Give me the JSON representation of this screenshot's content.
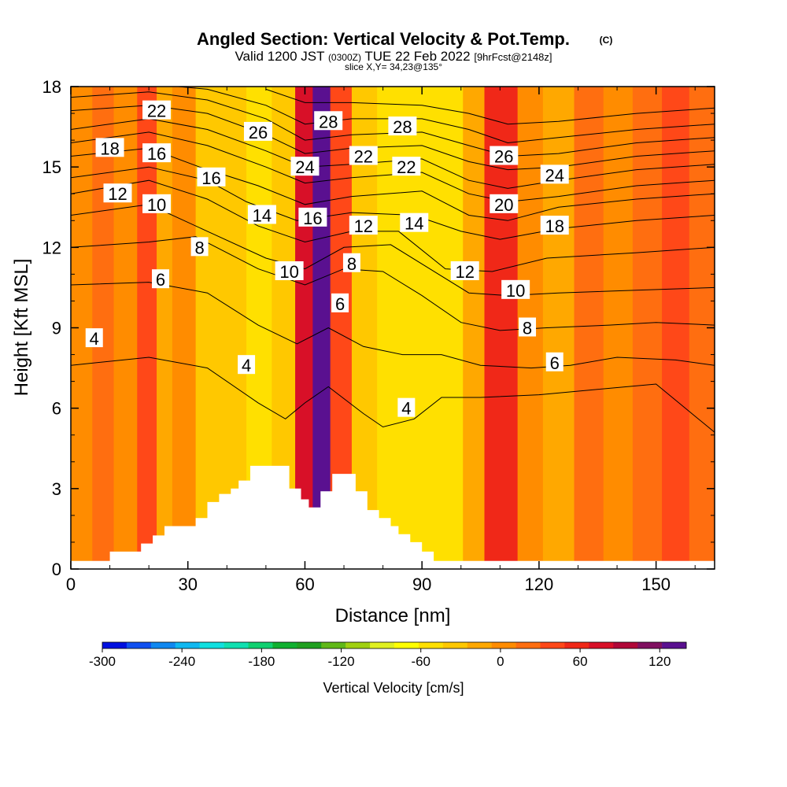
{
  "chart_data": {
    "type": "heatmap",
    "title": "Angled Section: Vertical Velocity & Pot.Temp.",
    "title_suffix": "(C)",
    "subtitle_main": "Valid 1200 JST",
    "subtitle_utc": "(0300Z)",
    "subtitle_date": "TUE 22 Feb 2022",
    "subtitle_fcst": "[9hrFcst@2148z]",
    "slice_label": "slice X,Y= 34,23@135°",
    "xlabel": "Distance [nm]",
    "ylabel": "Height [Kft MSL]",
    "xlim": [
      0,
      165
    ],
    "ylim": [
      0,
      18
    ],
    "x_ticks": [
      "0",
      "30",
      "60",
      "90",
      "120",
      "150"
    ],
    "y_ticks": [
      "0",
      "3",
      "6",
      "9",
      "12",
      "15",
      "18"
    ],
    "colorbar_label": "Vertical Velocity [cm/s]",
    "colorbar_ticks": [
      "-300",
      "-240",
      "-180",
      "-120",
      "-60",
      "0",
      "60",
      "120"
    ],
    "colorbar_range": [
      -300,
      140
    ],
    "colorbar_colors": [
      "#0010e0",
      "#1050f0",
      "#1088f0",
      "#10b8f0",
      "#10e0e0",
      "#10e0b0",
      "#10d070",
      "#10b030",
      "#20a020",
      "#60b818",
      "#a0d010",
      "#e0f020",
      "#ffff00",
      "#ffe000",
      "#ffc800",
      "#ffa800",
      "#ff8c00",
      "#ff6e10",
      "#ff4818",
      "#f02818",
      "#d81028",
      "#b00838",
      "#801060",
      "#5a1090"
    ],
    "velocity_bands": [
      {
        "x": 3,
        "value": -5
      },
      {
        "x": 8,
        "value": 20
      },
      {
        "x": 14,
        "value": 5
      },
      {
        "x": 20,
        "value": 45
      },
      {
        "x": 24,
        "value": -20
      },
      {
        "x": 28,
        "value": 5
      },
      {
        "x": 36,
        "value": -35
      },
      {
        "x": 42,
        "value": -30
      },
      {
        "x": 48,
        "value": -55
      },
      {
        "x": 55,
        "value": -40
      },
      {
        "x": 60,
        "value": 75
      },
      {
        "x": 64,
        "value": 125
      },
      {
        "x": 69,
        "value": 40
      },
      {
        "x": 75,
        "value": -35
      },
      {
        "x": 82,
        "value": -60
      },
      {
        "x": 90,
        "value": -50
      },
      {
        "x": 97,
        "value": -45
      },
      {
        "x": 104,
        "value": -10
      },
      {
        "x": 108,
        "value": 60
      },
      {
        "x": 112,
        "value": 50
      },
      {
        "x": 117,
        "value": 5
      },
      {
        "x": 125,
        "value": -10
      },
      {
        "x": 133,
        "value": 15
      },
      {
        "x": 140,
        "value": -5
      },
      {
        "x": 148,
        "value": 20
      },
      {
        "x": 155,
        "value": 35
      },
      {
        "x": 162,
        "value": 15
      }
    ],
    "theta_contours": [
      {
        "value": 4,
        "points": [
          [
            0,
            7.6
          ],
          [
            20,
            7.9
          ],
          [
            35,
            7.5
          ],
          [
            48,
            6.2
          ],
          [
            55,
            5.6
          ],
          [
            60,
            6.2
          ],
          [
            66,
            6.8
          ],
          [
            75,
            5.8
          ],
          [
            80,
            5.3
          ],
          [
            88,
            5.6
          ],
          [
            95,
            6.4
          ],
          [
            105,
            6.4
          ],
          [
            120,
            6.5
          ],
          [
            135,
            6.7
          ],
          [
            150,
            6.9
          ],
          [
            165,
            5.1
          ]
        ]
      },
      {
        "value": 6,
        "points": [
          [
            0,
            10.6
          ],
          [
            20,
            10.7
          ],
          [
            35,
            10.3
          ],
          [
            48,
            9.1
          ],
          [
            58,
            8.4
          ],
          [
            66,
            9.0
          ],
          [
            75,
            8.3
          ],
          [
            85,
            8.0
          ],
          [
            95,
            8.0
          ],
          [
            105,
            7.6
          ],
          [
            118,
            7.5
          ],
          [
            128,
            7.6
          ],
          [
            140,
            7.9
          ],
          [
            155,
            7.8
          ],
          [
            165,
            7.6
          ]
        ]
      },
      {
        "value": 8,
        "points": [
          [
            0,
            12.0
          ],
          [
            20,
            12.2
          ],
          [
            32,
            12.4
          ],
          [
            48,
            11.2
          ],
          [
            60,
            10.6
          ],
          [
            70,
            11.2
          ],
          [
            80,
            11.1
          ],
          [
            90,
            10.2
          ],
          [
            100,
            9.2
          ],
          [
            110,
            8.9
          ],
          [
            122,
            9.0
          ],
          [
            138,
            9.1
          ],
          [
            150,
            9.2
          ],
          [
            165,
            9.1
          ]
        ]
      },
      {
        "value": 10,
        "points": [
          [
            0,
            13.2
          ],
          [
            20,
            13.6
          ],
          [
            35,
            12.6
          ],
          [
            50,
            11.6
          ],
          [
            60,
            11.2
          ],
          [
            70,
            12.0
          ],
          [
            82,
            12.1
          ],
          [
            92,
            11.2
          ],
          [
            102,
            10.3
          ],
          [
            112,
            10.2
          ],
          [
            125,
            10.3
          ],
          [
            145,
            10.4
          ],
          [
            165,
            10.5
          ]
        ]
      },
      {
        "value": 12,
        "points": [
          [
            0,
            14.0
          ],
          [
            20,
            14.5
          ],
          [
            35,
            13.8
          ],
          [
            48,
            12.8
          ],
          [
            60,
            12.2
          ],
          [
            72,
            12.6
          ],
          [
            84,
            12.6
          ],
          [
            96,
            11.2
          ],
          [
            108,
            11.1
          ],
          [
            122,
            11.6
          ],
          [
            145,
            11.8
          ],
          [
            165,
            12.0
          ]
        ]
      },
      {
        "value": 14,
        "points": [
          [
            0,
            14.6
          ],
          [
            20,
            15.0
          ],
          [
            35,
            14.5
          ],
          [
            45,
            13.7
          ],
          [
            58,
            13.0
          ],
          [
            72,
            13.3
          ],
          [
            88,
            13.2
          ],
          [
            100,
            12.6
          ],
          [
            110,
            12.3
          ],
          [
            125,
            12.7
          ],
          [
            145,
            13.0
          ],
          [
            165,
            13.2
          ]
        ]
      },
      {
        "value": 16,
        "points": [
          [
            0,
            15.4
          ],
          [
            20,
            15.7
          ],
          [
            33,
            15.0
          ],
          [
            48,
            14.3
          ],
          [
            60,
            13.6
          ],
          [
            72,
            13.9
          ],
          [
            90,
            14.1
          ],
          [
            102,
            13.2
          ],
          [
            112,
            13.0
          ],
          [
            125,
            13.5
          ],
          [
            145,
            13.8
          ],
          [
            165,
            14.0
          ]
        ]
      },
      {
        "value": 18,
        "points": [
          [
            0,
            15.9
          ],
          [
            20,
            16.3
          ],
          [
            35,
            15.8
          ],
          [
            50,
            15.0
          ],
          [
            60,
            14.4
          ],
          [
            72,
            14.6
          ],
          [
            90,
            14.8
          ],
          [
            102,
            14.0
          ],
          [
            112,
            13.7
          ],
          [
            125,
            13.9
          ],
          [
            145,
            14.3
          ],
          [
            165,
            14.5
          ]
        ]
      },
      {
        "value": 20,
        "points": [
          [
            0,
            16.4
          ],
          [
            20,
            16.8
          ],
          [
            35,
            16.4
          ],
          [
            50,
            15.6
          ],
          [
            60,
            15.0
          ],
          [
            72,
            15.1
          ],
          [
            90,
            15.3
          ],
          [
            102,
            14.5
          ],
          [
            112,
            14.2
          ],
          [
            125,
            14.5
          ],
          [
            145,
            14.9
          ],
          [
            165,
            15.1
          ]
        ]
      },
      {
        "value": 22,
        "points": [
          [
            0,
            17.1
          ],
          [
            20,
            17.3
          ],
          [
            35,
            17.0
          ],
          [
            50,
            16.2
          ],
          [
            60,
            15.5
          ],
          [
            72,
            15.7
          ],
          [
            90,
            15.8
          ],
          [
            102,
            15.2
          ],
          [
            112,
            14.9
          ],
          [
            125,
            15.0
          ],
          [
            145,
            15.4
          ],
          [
            165,
            15.6
          ]
        ]
      },
      {
        "value": 24,
        "points": [
          [
            0,
            17.6
          ],
          [
            20,
            17.8
          ],
          [
            35,
            17.5
          ],
          [
            50,
            16.8
          ],
          [
            60,
            16.0
          ],
          [
            72,
            16.2
          ],
          [
            90,
            16.3
          ],
          [
            102,
            15.8
          ],
          [
            112,
            15.4
          ],
          [
            125,
            15.5
          ],
          [
            145,
            15.9
          ],
          [
            165,
            16.1
          ]
        ]
      },
      {
        "value": 26,
        "points": [
          [
            0,
            18.0
          ],
          [
            20,
            18.1
          ],
          [
            35,
            17.9
          ],
          [
            50,
            17.3
          ],
          [
            60,
            16.6
          ],
          [
            72,
            16.8
          ],
          [
            90,
            16.8
          ],
          [
            102,
            16.4
          ],
          [
            112,
            15.9
          ],
          [
            125,
            16.1
          ],
          [
            145,
            16.4
          ],
          [
            165,
            16.6
          ]
        ]
      },
      {
        "value": 28,
        "points": [
          [
            50,
            17.9
          ],
          [
            60,
            17.4
          ],
          [
            72,
            17.4
          ],
          [
            90,
            17.3
          ],
          [
            102,
            17.0
          ],
          [
            112,
            16.6
          ],
          [
            125,
            16.7
          ],
          [
            145,
            17.0
          ],
          [
            165,
            17.2
          ]
        ]
      }
    ],
    "contour_labels": [
      {
        "text": "22",
        "x": 22,
        "y": 17.1
      },
      {
        "text": "26",
        "x": 48,
        "y": 16.3
      },
      {
        "text": "28",
        "x": 66,
        "y": 16.7
      },
      {
        "text": "28",
        "x": 85,
        "y": 16.5
      },
      {
        "text": "18",
        "x": 10,
        "y": 15.7
      },
      {
        "text": "16",
        "x": 22,
        "y": 15.5
      },
      {
        "text": "24",
        "x": 60,
        "y": 15.0
      },
      {
        "text": "22",
        "x": 75,
        "y": 15.4
      },
      {
        "text": "22",
        "x": 86,
        "y": 15.0
      },
      {
        "text": "26",
        "x": 111,
        "y": 15.4
      },
      {
        "text": "24",
        "x": 124,
        "y": 14.7
      },
      {
        "text": "16",
        "x": 36,
        "y": 14.6
      },
      {
        "text": "12",
        "x": 12,
        "y": 14.0
      },
      {
        "text": "10",
        "x": 22,
        "y": 13.6
      },
      {
        "text": "20",
        "x": 111,
        "y": 13.6
      },
      {
        "text": "14",
        "x": 49,
        "y": 13.2
      },
      {
        "text": "16",
        "x": 62,
        "y": 13.1
      },
      {
        "text": "12",
        "x": 75,
        "y": 12.8
      },
      {
        "text": "14",
        "x": 88,
        "y": 12.9
      },
      {
        "text": "18",
        "x": 124,
        "y": 12.8
      },
      {
        "text": "8",
        "x": 33,
        "y": 12.0
      },
      {
        "text": "10",
        "x": 56,
        "y": 11.1
      },
      {
        "text": "8",
        "x": 72,
        "y": 11.4
      },
      {
        "text": "12",
        "x": 101,
        "y": 11.1
      },
      {
        "text": "6",
        "x": 23,
        "y": 10.8
      },
      {
        "text": "10",
        "x": 114,
        "y": 10.4
      },
      {
        "text": "6",
        "x": 69,
        "y": 9.9
      },
      {
        "text": "8",
        "x": 117,
        "y": 9.0
      },
      {
        "text": "4",
        "x": 6,
        "y": 8.6
      },
      {
        "text": "6",
        "x": 124,
        "y": 7.7
      },
      {
        "text": "4",
        "x": 45,
        "y": 7.6
      },
      {
        "text": "4",
        "x": 86,
        "y": 6.0
      }
    ],
    "terrain": [
      [
        0,
        0.3
      ],
      [
        10,
        0.3
      ],
      [
        10,
        0.65
      ],
      [
        18,
        0.65
      ],
      [
        18,
        0.95
      ],
      [
        21,
        0.95
      ],
      [
        21,
        1.25
      ],
      [
        24,
        1.25
      ],
      [
        24,
        1.6
      ],
      [
        32,
        1.6
      ],
      [
        32,
        1.9
      ],
      [
        35,
        1.9
      ],
      [
        35,
        2.5
      ],
      [
        38,
        2.5
      ],
      [
        38,
        2.8
      ],
      [
        41,
        2.8
      ],
      [
        41,
        3.0
      ],
      [
        43,
        3.0
      ],
      [
        43,
        3.3
      ],
      [
        46,
        3.3
      ],
      [
        46,
        3.85
      ],
      [
        56,
        3.85
      ],
      [
        56,
        3.0
      ],
      [
        59,
        3.0
      ],
      [
        59,
        2.6
      ],
      [
        61,
        2.6
      ],
      [
        61,
        2.3
      ],
      [
        64,
        2.3
      ],
      [
        64,
        2.9
      ],
      [
        67,
        2.9
      ],
      [
        67,
        3.55
      ],
      [
        73,
        3.55
      ],
      [
        73,
        2.9
      ],
      [
        76,
        2.9
      ],
      [
        76,
        2.2
      ],
      [
        79,
        2.2
      ],
      [
        79,
        1.9
      ],
      [
        82,
        1.9
      ],
      [
        82,
        1.6
      ],
      [
        84,
        1.6
      ],
      [
        84,
        1.3
      ],
      [
        87,
        1.3
      ],
      [
        87,
        1.0
      ],
      [
        90,
        1.0
      ],
      [
        90,
        0.65
      ],
      [
        93,
        0.65
      ],
      [
        93,
        0.3
      ],
      [
        165,
        0.3
      ]
    ]
  }
}
